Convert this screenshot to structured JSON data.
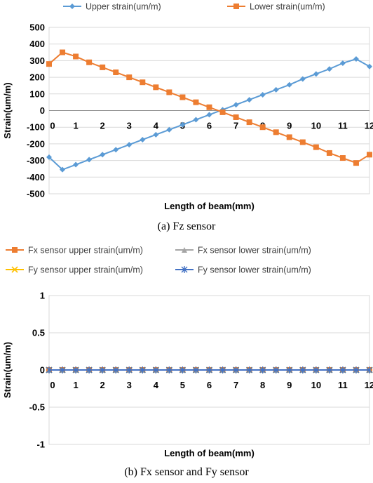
{
  "captions": {
    "a": "(a) Fz sensor",
    "b": "(b) Fx sensor and Fy sensor"
  },
  "chart_data": [
    {
      "type": "line",
      "title": "",
      "xlabel": "Length of beam(mm)",
      "ylabel": "Strain(um/m)",
      "ylim": [
        -500,
        500
      ],
      "yticks": [
        500,
        400,
        300,
        200,
        100,
        0,
        -100,
        -200,
        -300,
        -400,
        -500
      ],
      "xlim": [
        0,
        12
      ],
      "xticks": [
        0,
        1,
        2,
        3,
        4,
        5,
        6,
        7,
        8,
        9,
        10,
        11,
        12
      ],
      "grid": true,
      "legend": "top",
      "x": [
        0,
        0.5,
        1,
        1.5,
        2,
        2.5,
        3,
        3.5,
        4,
        4.5,
        5,
        5.5,
        6,
        6.5,
        7,
        7.5,
        8,
        8.5,
        9,
        9.5,
        10,
        10.5,
        11,
        11.5,
        12
      ],
      "series": [
        {
          "name": "Upper strain(um/m)",
          "color": "#5b9bd5",
          "marker": "diamond",
          "values": [
            -280,
            -355,
            -325,
            -295,
            -265,
            -235,
            -205,
            -175,
            -145,
            -115,
            -85,
            -55,
            -25,
            5,
            35,
            65,
            95,
            125,
            155,
            190,
            220,
            250,
            285,
            310,
            265
          ]
        },
        {
          "name": "Lower strain(um/m)",
          "color": "#ed7d31",
          "marker": "square",
          "values": [
            280,
            350,
            325,
            290,
            260,
            230,
            200,
            170,
            140,
            110,
            80,
            50,
            20,
            -10,
            -40,
            -70,
            -100,
            -130,
            -160,
            -190,
            -220,
            -255,
            -285,
            -315,
            -265
          ]
        }
      ]
    },
    {
      "type": "line",
      "title": "",
      "xlabel": "Length of beam(mm)",
      "ylabel": "Strain(um/m)",
      "ylim": [
        -1,
        1
      ],
      "yticks": [
        "1",
        "0.5",
        "0",
        "-0.5",
        "-1"
      ],
      "xlim": [
        0,
        12
      ],
      "xticks": [
        0,
        1,
        2,
        3,
        4,
        5,
        6,
        7,
        8,
        9,
        10,
        11,
        12
      ],
      "grid": true,
      "legend": "top",
      "x": [
        0,
        0.5,
        1,
        1.5,
        2,
        2.5,
        3,
        3.5,
        4,
        4.5,
        5,
        5.5,
        6,
        6.5,
        7,
        7.5,
        8,
        8.5,
        9,
        9.5,
        10,
        10.5,
        11,
        11.5,
        12
      ],
      "series": [
        {
          "name": "Fx sensor upper strain(um/m)",
          "color": "#ed7d31",
          "marker": "square",
          "values": [
            0,
            0,
            0,
            0,
            0,
            0,
            0,
            0,
            0,
            0,
            0,
            0,
            0,
            0,
            0,
            0,
            0,
            0,
            0,
            0,
            0,
            0,
            0,
            0,
            0
          ]
        },
        {
          "name": "Fx sensor lower strain(um/m)",
          "color": "#a5a5a5",
          "marker": "triangle",
          "values": [
            0,
            0,
            0,
            0,
            0,
            0,
            0,
            0,
            0,
            0,
            0,
            0,
            0,
            0,
            0,
            0,
            0,
            0,
            0,
            0,
            0,
            0,
            0,
            0,
            0
          ]
        },
        {
          "name": "Fy sensor upper strain(um/m)",
          "color": "#ffc000",
          "marker": "x",
          "values": [
            0,
            0,
            0,
            0,
            0,
            0,
            0,
            0,
            0,
            0,
            0,
            0,
            0,
            0,
            0,
            0,
            0,
            0,
            0,
            0,
            0,
            0,
            0,
            0,
            0
          ]
        },
        {
          "name": "Fy sensor lower strain(um/m)",
          "color": "#4472c4",
          "marker": "star",
          "values": [
            0,
            0,
            0,
            0,
            0,
            0,
            0,
            0,
            0,
            0,
            0,
            0,
            0,
            0,
            0,
            0,
            0,
            0,
            0,
            0,
            0,
            0,
            0,
            0,
            0
          ]
        }
      ]
    }
  ]
}
